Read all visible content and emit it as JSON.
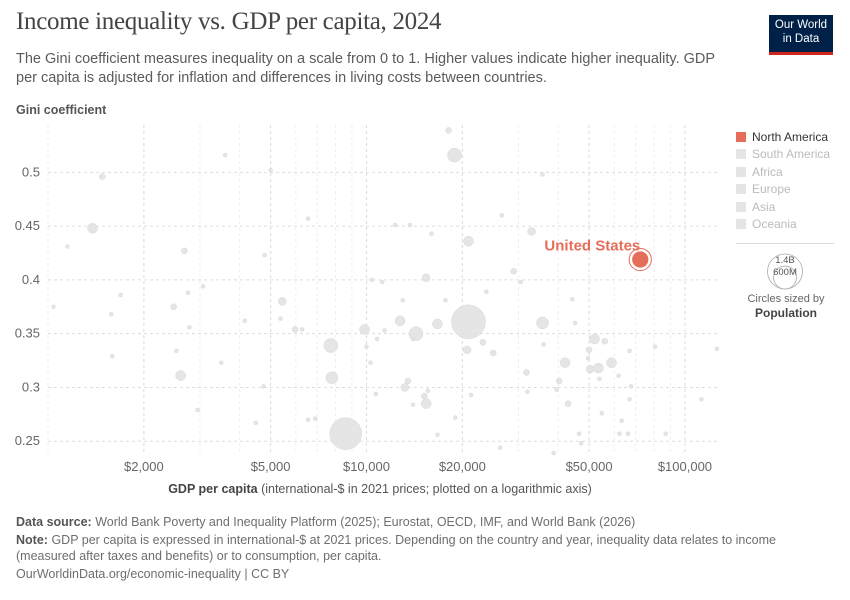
{
  "header": {
    "title": "Income inequality vs. GDP per capita, 2024",
    "subtitle": "The Gini coefficient measures inequality on a scale from 0 to 1. Higher values indicate higher inequality. GDP per capita is adjusted for inflation and differences in living costs between countries.",
    "logo": "Our World in Data"
  },
  "colors": {
    "highlight": "#e56e5a",
    "muted": "#e3e3e3",
    "logo_bg": "#002147",
    "logo_accent": "#ce261e"
  },
  "legend": {
    "items": [
      "North America",
      "South America",
      "Africa",
      "Europe",
      "Asia",
      "Oceania"
    ],
    "active": "North America",
    "size_values": [
      "1.4B",
      "600M"
    ],
    "size_note": "Circles sized by",
    "size_var": "Population"
  },
  "footer": {
    "source_label": "Data source:",
    "source": "World Bank Poverty and Inequality Platform (2025); Eurostat, OECD, IMF, and World Bank (2026)",
    "note_label": "Note:",
    "note": "GDP per capita is expressed in international-$ at 2021 prices. Depending on the country and year, inequality data relates to income (measured after taxes and benefits) or to consumption, per capita.",
    "url": "OurWorldinData.org/economic-inequality | CC BY"
  },
  "chart_data": {
    "type": "scatter",
    "title": "Income inequality vs. GDP per capita, 2024",
    "ylabel": "Gini coefficient",
    "xlabel_bold": "GDP per capita",
    "xlabel_rest": "(international-$ in 2021 prices; plotted on a logarithmic axis)",
    "xscale": "log",
    "xlim": [
      1000,
      127000
    ],
    "ylim": [
      0.24,
      0.544
    ],
    "xticks": [
      2000,
      5000,
      10000,
      20000,
      50000,
      100000
    ],
    "xtick_labels": [
      "$2,000",
      "$5,000",
      "$10,000",
      "$20,000",
      "$50,000",
      "$100,000"
    ],
    "yticks": [
      0.25,
      0.3,
      0.35,
      0.4,
      0.45,
      0.5
    ],
    "ytick_labels": [
      "0.25",
      "0.3",
      "0.35",
      "0.4",
      "0.45",
      "0.5"
    ],
    "grid": true,
    "size_variable": "Population (millions)",
    "highlight": {
      "label": "United States",
      "gdp": 72400,
      "gini": 0.419,
      "pop": 340
    },
    "points": [
      [
        18100,
        0.539,
        41
      ],
      [
        18900,
        0.516,
        224
      ],
      [
        1480,
        0.496,
        41
      ],
      [
        3600,
        0.516,
        18
      ],
      [
        5000,
        0.502,
        18
      ],
      [
        35700,
        0.498,
        18
      ],
      [
        1380,
        0.448,
        114
      ],
      [
        1150,
        0.431,
        18
      ],
      [
        2680,
        0.427,
        41
      ],
      [
        6560,
        0.457,
        18
      ],
      [
        4790,
        0.423,
        18
      ],
      [
        20900,
        0.436,
        114
      ],
      [
        26600,
        0.46,
        18
      ],
      [
        33000,
        0.445,
        73
      ],
      [
        12300,
        0.451,
        18
      ],
      [
        13700,
        0.451,
        18
      ],
      [
        16000,
        0.443,
        18
      ],
      [
        29000,
        0.408,
        41
      ],
      [
        30500,
        0.398,
        18
      ],
      [
        1040,
        0.375,
        18
      ],
      [
        1580,
        0.368,
        18
      ],
      [
        1690,
        0.386,
        18
      ],
      [
        2480,
        0.375,
        41
      ],
      [
        2750,
        0.388,
        18
      ],
      [
        3070,
        0.394,
        18
      ],
      [
        5440,
        0.38,
        73
      ],
      [
        5370,
        0.364,
        18
      ],
      [
        4150,
        0.362,
        18
      ],
      [
        5970,
        0.354,
        41
      ],
      [
        6280,
        0.354,
        18
      ],
      [
        2780,
        0.356,
        18
      ],
      [
        9860,
        0.354,
        114
      ],
      [
        10400,
        0.4,
        18
      ],
      [
        11200,
        0.398,
        18
      ],
      [
        13000,
        0.381,
        18
      ],
      [
        12750,
        0.362,
        114
      ],
      [
        14300,
        0.35,
        224
      ],
      [
        16700,
        0.359,
        114
      ],
      [
        20900,
        0.361,
        1320
      ],
      [
        15400,
        0.402,
        73
      ],
      [
        17700,
        0.381,
        18
      ],
      [
        23800,
        0.389,
        18
      ],
      [
        35700,
        0.36,
        165
      ],
      [
        7730,
        0.339,
        224
      ],
      [
        7790,
        0.309,
        165
      ],
      [
        2610,
        0.311,
        114
      ],
      [
        2530,
        0.334,
        18
      ],
      [
        1590,
        0.329,
        18
      ],
      [
        3500,
        0.323,
        18
      ],
      [
        4750,
        0.301,
        18
      ],
      [
        2950,
        0.279,
        18
      ],
      [
        4490,
        0.267,
        18
      ],
      [
        8610,
        0.257,
        1170
      ],
      [
        6560,
        0.27,
        18
      ],
      [
        6900,
        0.271,
        18
      ],
      [
        13200,
        0.3,
        73
      ],
      [
        13500,
        0.306,
        41
      ],
      [
        15200,
        0.292,
        41
      ],
      [
        15600,
        0.297,
        18
      ],
      [
        14000,
        0.284,
        18
      ],
      [
        15400,
        0.285,
        114
      ],
      [
        16700,
        0.256,
        18
      ],
      [
        19000,
        0.272,
        18
      ],
      [
        21300,
        0.293,
        18
      ],
      [
        20700,
        0.335,
        73
      ],
      [
        23200,
        0.342,
        41
      ],
      [
        25000,
        0.332,
        41
      ],
      [
        32000,
        0.296,
        18
      ],
      [
        31800,
        0.314,
        41
      ],
      [
        42000,
        0.323,
        114
      ],
      [
        40300,
        0.306,
        41
      ],
      [
        43000,
        0.285,
        41
      ],
      [
        50000,
        0.335,
        41
      ],
      [
        49600,
        0.327,
        18
      ],
      [
        52000,
        0.345,
        114
      ],
      [
        56000,
        0.343,
        41
      ],
      [
        58800,
        0.323,
        114
      ],
      [
        50400,
        0.317,
        73
      ],
      [
        53500,
        0.318,
        114
      ],
      [
        53900,
        0.308,
        18
      ],
      [
        44300,
        0.382,
        18
      ],
      [
        45200,
        0.36,
        18
      ],
      [
        36000,
        0.34,
        18
      ],
      [
        39500,
        0.298,
        18
      ],
      [
        54800,
        0.276,
        18
      ],
      [
        63300,
        0.269,
        18
      ],
      [
        67000,
        0.289,
        18
      ],
      [
        67700,
        0.301,
        18
      ],
      [
        61900,
        0.311,
        18
      ],
      [
        67000,
        0.334,
        18
      ],
      [
        80600,
        0.338,
        18
      ],
      [
        87000,
        0.257,
        18
      ],
      [
        112600,
        0.289,
        18
      ],
      [
        126000,
        0.336,
        18
      ],
      [
        46500,
        0.257,
        18
      ],
      [
        47200,
        0.248,
        18
      ],
      [
        26300,
        0.244,
        18
      ],
      [
        38700,
        0.239,
        18
      ],
      [
        62300,
        0.257,
        18
      ],
      [
        66300,
        0.257,
        18
      ],
      [
        10800,
        0.345,
        18
      ],
      [
        11400,
        0.353,
        18
      ],
      [
        10000,
        0.338,
        18
      ],
      [
        10300,
        0.323,
        18
      ],
      [
        10700,
        0.294,
        18
      ],
      [
        14000,
        0.345,
        18
      ]
    ]
  }
}
